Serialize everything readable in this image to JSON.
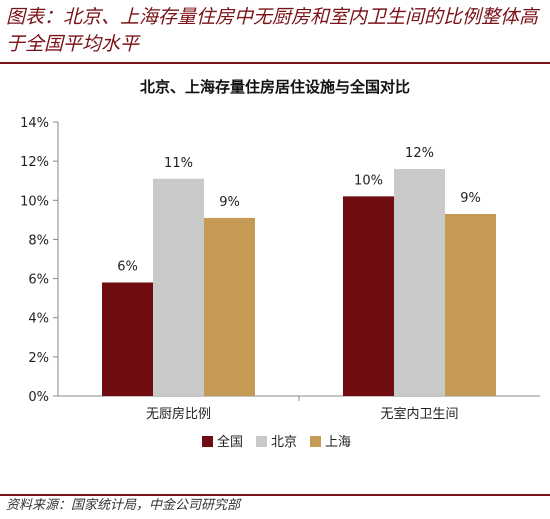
{
  "figure": {
    "title": "图表：北京、上海存量住房中无厨房和室内卫生间的比例整体高于全国平均水平",
    "source": "资料来源：国家统计局，中金公司研究部"
  },
  "chart_data": {
    "type": "bar",
    "title": "北京、上海存量住房居住设施与全国对比",
    "categories": [
      "无厨房比例",
      "无室内卫生间"
    ],
    "series": [
      {
        "name": "全国",
        "values": [
          5.8,
          10.2
        ],
        "labels": [
          "6%",
          "10%"
        ],
        "color": "#6e0c10"
      },
      {
        "name": "北京",
        "values": [
          11.1,
          11.6
        ],
        "labels": [
          "11%",
          "12%"
        ],
        "color": "#c9c9c9"
      },
      {
        "name": "上海",
        "values": [
          9.1,
          9.3
        ],
        "labels": [
          "9%",
          "9%"
        ],
        "color": "#c49a55"
      }
    ],
    "ylim": [
      0,
      14
    ],
    "yticks": [
      0,
      2,
      4,
      6,
      8,
      10,
      12,
      14
    ],
    "ytick_labels": [
      "0%",
      "2%",
      "4%",
      "6%",
      "8%",
      "10%",
      "12%",
      "14%"
    ],
    "xlabel": "",
    "ylabel": "",
    "grid": false,
    "legend_position": "bottom"
  }
}
